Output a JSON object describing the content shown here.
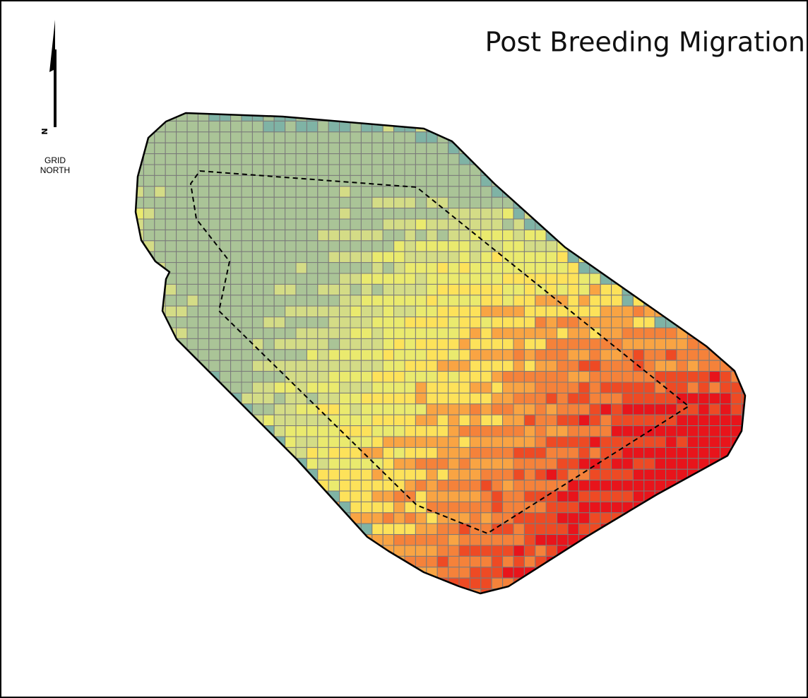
{
  "title": "Post Breeding Migration",
  "north_arrow": {
    "letter": "N",
    "line1": "GRID",
    "line2": "NORTH"
  }
}
